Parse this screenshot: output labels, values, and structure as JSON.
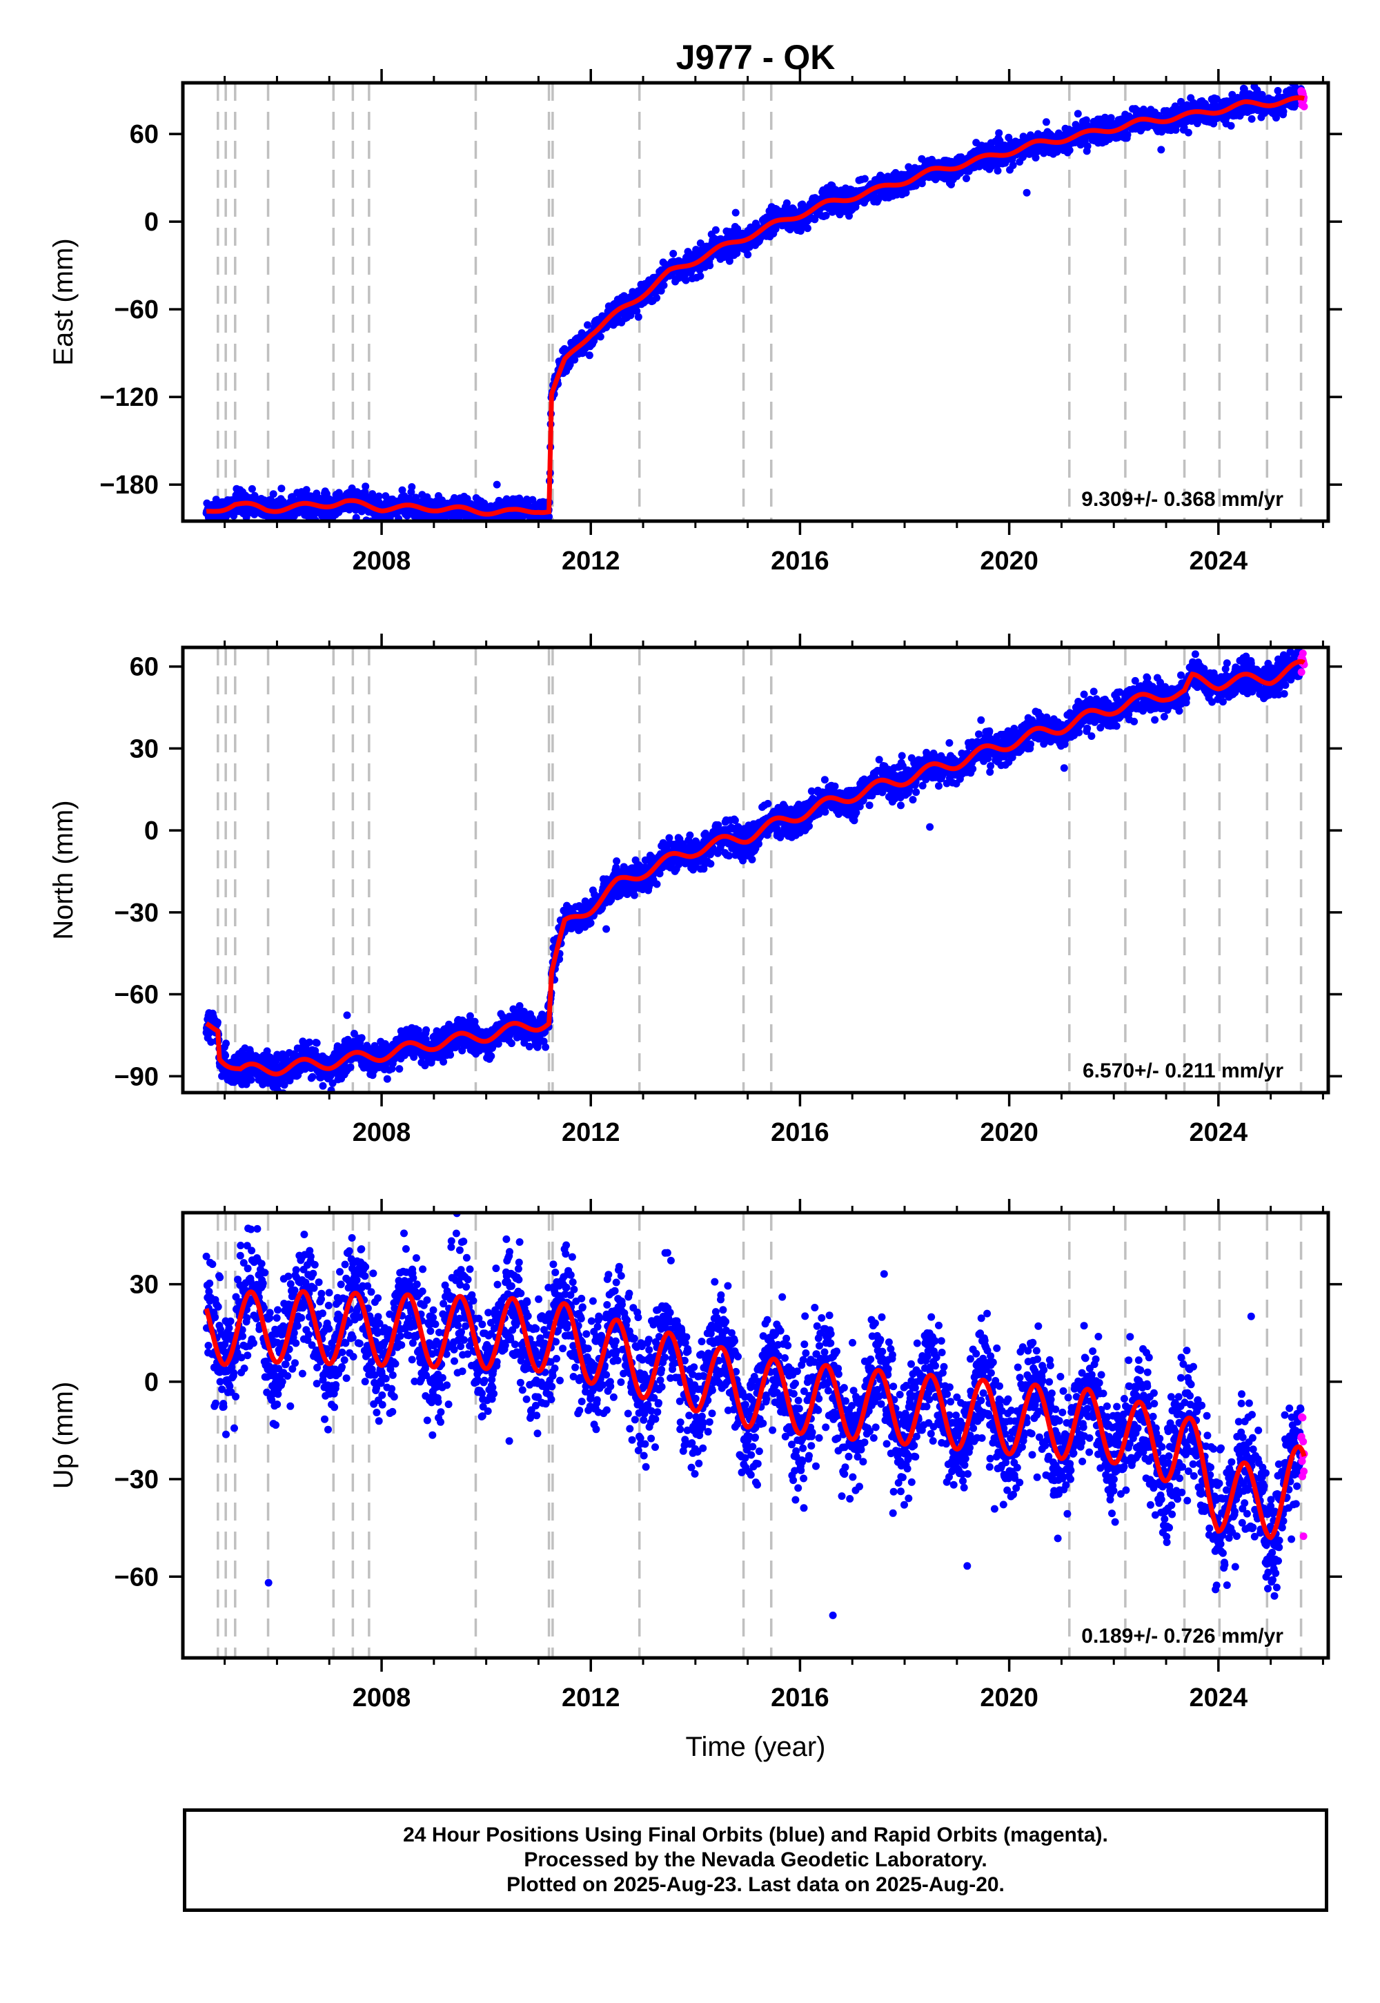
{
  "chart_data": [
    {
      "type": "scatter",
      "title": "J977 - OK",
      "ylabel": "East (mm)",
      "xlabel": "",
      "xlim": [
        2004.2,
        2026.1
      ],
      "ylim": [
        -205,
        95
      ],
      "x_ticks": [
        2008,
        2012,
        2016,
        2020,
        2024
      ],
      "y_ticks": [
        60,
        0,
        -60,
        -120,
        -180
      ],
      "rate_label": "9.309+/- 0.368 mm/yr",
      "colors": {
        "final": "#0000ff",
        "rapid": "#ff00ff",
        "model": "#ff0000",
        "events": "#c0c0c0"
      },
      "event_lines": [
        2004.87,
        2005.02,
        2005.2,
        2005.83,
        2007.08,
        2007.45,
        2007.76,
        2009.8,
        2011.2,
        2011.27,
        2012.93,
        2014.92,
        2015.45,
        2021.15,
        2022.22,
        2023.35,
        2024.02,
        2024.93,
        2025.58
      ],
      "model_anchors": [
        [
          2004.65,
          -199.5
        ],
        [
          2005.2,
          -193
        ],
        [
          2005.8,
          -197
        ],
        [
          2006.8,
          -194
        ],
        [
          2007.3,
          -192
        ],
        [
          2008.0,
          -196
        ],
        [
          2009.0,
          -196
        ],
        [
          2009.8,
          -198
        ],
        [
          2010.5,
          -199
        ],
        [
          2011.0,
          -197
        ],
        [
          2011.2,
          -198
        ],
        [
          2011.25,
          -118
        ],
        [
          2011.5,
          -96
        ],
        [
          2012.0,
          -76
        ],
        [
          2012.8,
          -55
        ],
        [
          2013.5,
          -35
        ],
        [
          2014.5,
          -18
        ],
        [
          2015.5,
          -2
        ],
        [
          2016.5,
          12
        ],
        [
          2017.5,
          22
        ],
        [
          2018.5,
          34
        ],
        [
          2019.5,
          43
        ],
        [
          2020.5,
          53
        ],
        [
          2021.5,
          60
        ],
        [
          2022.5,
          68
        ],
        [
          2023.5,
          73
        ],
        [
          2024.5,
          80
        ],
        [
          2025.6,
          83
        ]
      ],
      "rapid_range": [
        2025.58,
        2025.64
      ],
      "scatter_amplitude": 4,
      "seasonal_amplitude": 2
    },
    {
      "type": "scatter",
      "title": "",
      "ylabel": "North (mm)",
      "xlabel": "",
      "xlim": [
        2004.2,
        2026.1
      ],
      "ylim": [
        -96,
        67
      ],
      "x_ticks": [
        2008,
        2012,
        2016,
        2020,
        2024
      ],
      "y_ticks": [
        60,
        30,
        0,
        -30,
        -60,
        -90
      ],
      "rate_label": "6.570+/- 0.211 mm/yr",
      "colors": {
        "final": "#0000ff",
        "rapid": "#ff00ff",
        "model": "#ff0000",
        "events": "#c0c0c0"
      },
      "event_lines": [
        2004.87,
        2005.02,
        2005.2,
        2005.83,
        2007.08,
        2007.45,
        2007.76,
        2009.8,
        2011.2,
        2011.27,
        2012.93,
        2014.92,
        2015.45,
        2021.15,
        2022.22,
        2023.35,
        2024.02,
        2024.93,
        2025.58
      ],
      "model_anchors": [
        [
          2004.65,
          -72
        ],
        [
          2004.87,
          -72
        ],
        [
          2004.9,
          -82
        ],
        [
          2005.3,
          -88
        ],
        [
          2006.0,
          -87
        ],
        [
          2007.0,
          -85
        ],
        [
          2008.0,
          -82
        ],
        [
          2009.0,
          -78
        ],
        [
          2010.0,
          -75
        ],
        [
          2011.2,
          -70
        ],
        [
          2011.25,
          -52
        ],
        [
          2011.5,
          -35
        ],
        [
          2012.0,
          -28
        ],
        [
          2012.5,
          -20
        ],
        [
          2013.0,
          -15
        ],
        [
          2014.0,
          -7
        ],
        [
          2015.0,
          -2
        ],
        [
          2016.0,
          6
        ],
        [
          2017.0,
          13
        ],
        [
          2018.0,
          19
        ],
        [
          2019.0,
          25
        ],
        [
          2020.0,
          32
        ],
        [
          2021.0,
          38
        ],
        [
          2022.0,
          45
        ],
        [
          2023.0,
          50
        ],
        [
          2023.35,
          50
        ],
        [
          2023.5,
          55
        ],
        [
          2024.0,
          54
        ],
        [
          2025.0,
          56
        ],
        [
          2025.6,
          60
        ]
      ],
      "rapid_range": [
        2025.58,
        2025.64
      ],
      "scatter_amplitude": 2.8,
      "seasonal_amplitude": 2.2
    },
    {
      "type": "scatter",
      "title": "",
      "ylabel": "Up (mm)",
      "xlabel": "Time (year)",
      "xlim": [
        2004.2,
        2026.1
      ],
      "ylim": [
        -85,
        52
      ],
      "x_ticks": [
        2008,
        2012,
        2016,
        2020,
        2024
      ],
      "y_ticks": [
        30,
        0,
        -30,
        -60
      ],
      "rate_label": "0.189+/- 0.726 mm/yr",
      "colors": {
        "final": "#0000ff",
        "rapid": "#ff00ff",
        "model": "#ff0000",
        "events": "#c0c0c0"
      },
      "event_lines": [
        2004.87,
        2005.02,
        2005.2,
        2005.83,
        2007.08,
        2007.45,
        2007.76,
        2009.8,
        2011.2,
        2011.27,
        2012.93,
        2014.92,
        2015.45,
        2021.15,
        2022.22,
        2023.35,
        2024.02,
        2024.93,
        2025.58
      ],
      "model_anchors": [
        [
          2004.65,
          16
        ],
        [
          2006.0,
          17
        ],
        [
          2008.0,
          16
        ],
        [
          2010.0,
          15
        ],
        [
          2011.3,
          14
        ],
        [
          2012.5,
          8
        ],
        [
          2014.0,
          2
        ],
        [
          2015.0,
          -3
        ],
        [
          2016.5,
          -6
        ],
        [
          2018.5,
          -9
        ],
        [
          2020.5,
          -12
        ],
        [
          2022.0,
          -14
        ],
        [
          2022.9,
          -20
        ],
        [
          2023.3,
          -18
        ],
        [
          2024.0,
          -35
        ],
        [
          2025.0,
          -37
        ],
        [
          2025.6,
          -30
        ]
      ],
      "rapid_range": [
        2025.58,
        2025.64
      ],
      "scatter_amplitude": 9,
      "seasonal_amplitude": 11
    }
  ],
  "footer": {
    "line1": "24 Hour Positions Using Final Orbits (blue) and Rapid Orbits (magenta).",
    "line2": "Processed by the Nevada Geodetic Laboratory.",
    "line3": "Plotted on 2025-Aug-23. Last data on 2025-Aug-20."
  }
}
